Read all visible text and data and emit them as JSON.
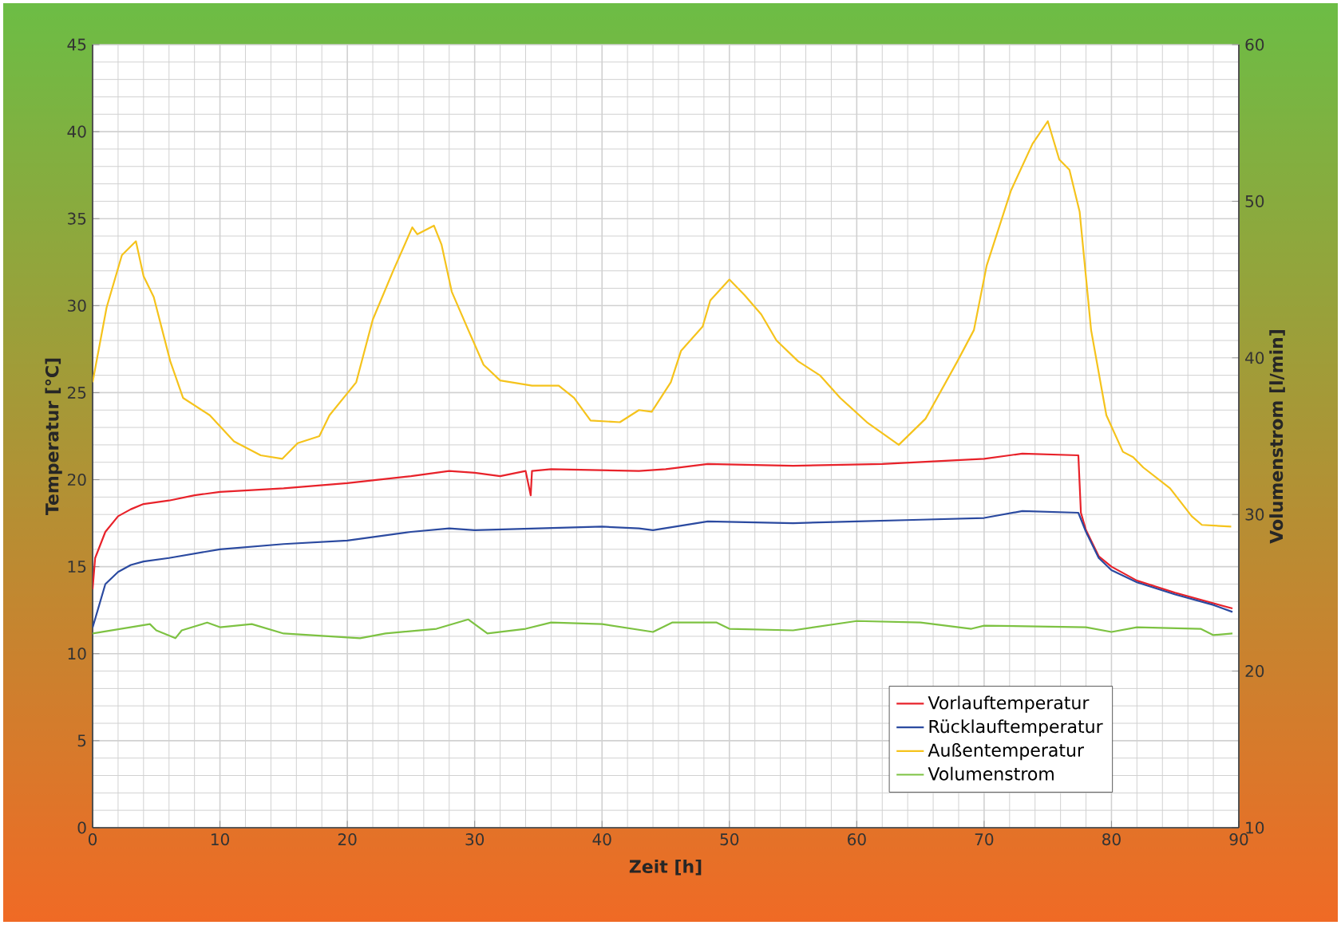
{
  "chart_data": {
    "type": "line",
    "xlabel": "Zeit [h]",
    "ylabel": "Temperatur [°C]",
    "y2label": "Volumenstrom [l/min]",
    "xlim": [
      0,
      90
    ],
    "xticks": [
      0,
      10,
      20,
      30,
      40,
      50,
      60,
      70,
      80,
      90
    ],
    "ylim": [
      0,
      45
    ],
    "yticks": [
      0,
      5,
      10,
      15,
      20,
      25,
      30,
      35,
      40,
      45
    ],
    "y2lim": [
      10,
      60
    ],
    "y2ticks": [
      10,
      20,
      30,
      40,
      50,
      60
    ],
    "grid": true,
    "legend": "bottom right",
    "line_style": "solid",
    "series": [
      {
        "name": "Vorlauftemperatur",
        "color": "#e8222a",
        "x": [
          0,
          0.2,
          1,
          2,
          3,
          4,
          6,
          8,
          10,
          15,
          20,
          25,
          28,
          30,
          32,
          34,
          34.4,
          34.5,
          36,
          42.9,
          45,
          48.3,
          55,
          62,
          70,
          73,
          77.4,
          77.6,
          78,
          79,
          80,
          82,
          85,
          88,
          89.5
        ],
        "values": [
          13.7,
          15.5,
          17,
          17.9,
          18.3,
          18.6,
          18.8,
          19.1,
          19.3,
          19.5,
          19.8,
          20.2,
          20.5,
          20.4,
          20.2,
          20.5,
          19.1,
          20.5,
          20.6,
          20.5,
          20.6,
          20.9,
          20.8,
          20.9,
          21.2,
          21.5,
          21.4,
          18.1,
          17.1,
          15.6,
          15,
          14.2,
          13.5,
          12.9,
          12.6
        ]
      },
      {
        "name": "Rücklauftemperatur",
        "color": "#2b4aa0",
        "x": [
          0,
          1,
          2,
          3,
          4,
          6,
          10,
          15,
          20,
          25,
          28,
          30,
          35,
          40,
          42.9,
          44,
          48.3,
          55,
          60,
          65,
          70,
          73,
          77.4,
          78,
          79,
          80,
          82,
          85,
          88,
          89.5
        ],
        "values": [
          11.5,
          14,
          14.7,
          15.1,
          15.3,
          15.5,
          16,
          16.3,
          16.5,
          17,
          17.2,
          17.1,
          17.2,
          17.3,
          17.2,
          17.1,
          17.6,
          17.5,
          17.6,
          17.7,
          17.8,
          18.2,
          18.1,
          17,
          15.5,
          14.8,
          14.1,
          13.4,
          12.8,
          12.4
        ]
      },
      {
        "name": "Außentemperatur",
        "color": "#f5c31c",
        "x": [
          0,
          1.1,
          2.3,
          3.4,
          4,
          4.8,
          6.1,
          7.1,
          9.2,
          11.1,
          13.2,
          14.9,
          16.1,
          17.8,
          18.6,
          20.7,
          22,
          23.6,
          25.1,
          25.5,
          26.8,
          27.4,
          28.2,
          29.5,
          30.7,
          32,
          34.5,
          36.6,
          37.8,
          39.1,
          41.4,
          42.9,
          43.9,
          45.4,
          46.2,
          47.9,
          48.5,
          50,
          51.2,
          52.5,
          53.7,
          55.4,
          57.1,
          58.7,
          60.8,
          63.3,
          65.4,
          67.9,
          69.2,
          70.2,
          72.1,
          73.8,
          75,
          75.9,
          76.7,
          77.5,
          78.4,
          79.6,
          80.9,
          81.7,
          82.5,
          84.6,
          86.3,
          87.1,
          89.4
        ],
        "values": [
          25.6,
          29.9,
          32.9,
          33.7,
          31.7,
          30.5,
          26.8,
          24.7,
          23.7,
          22.2,
          21.4,
          21.2,
          22.1,
          22.5,
          23.7,
          25.6,
          29.2,
          32,
          34.5,
          34.1,
          34.6,
          33.5,
          30.8,
          28.6,
          26.6,
          25.7,
          25.4,
          25.4,
          24.7,
          23.4,
          23.3,
          24,
          23.9,
          25.6,
          27.4,
          28.8,
          30.3,
          31.5,
          30.6,
          29.5,
          28,
          26.8,
          26,
          24.7,
          23.3,
          22,
          23.5,
          26.8,
          28.6,
          32.3,
          36.6,
          39.3,
          40.6,
          38.4,
          37.8,
          35.4,
          28.6,
          23.7,
          21.6,
          21.3,
          20.7,
          19.5,
          17.9,
          17.4,
          17.3
        ]
      },
      {
        "name": "Volumenstrom",
        "color": "#7dc242",
        "axis": "y2",
        "x": [
          0,
          4.5,
          5,
          6.5,
          7,
          9,
          10,
          12.5,
          15,
          17,
          21,
          23,
          27,
          29.5,
          31,
          34,
          36,
          40,
          44,
          45.5,
          49,
          50,
          55,
          60,
          65,
          69,
          70,
          78,
          80,
          82,
          87,
          88,
          89.5
        ],
        "values": [
          22.4,
          23,
          22.6,
          22.1,
          22.6,
          23.1,
          22.8,
          23,
          22.4,
          22.3,
          22.1,
          22.4,
          22.7,
          23.3,
          22.4,
          22.7,
          23.1,
          23,
          22.5,
          23.1,
          23.1,
          22.7,
          22.6,
          23.2,
          23.1,
          22.7,
          22.9,
          22.8,
          22.5,
          22.8,
          22.7,
          22.3,
          22.4
        ]
      }
    ]
  }
}
